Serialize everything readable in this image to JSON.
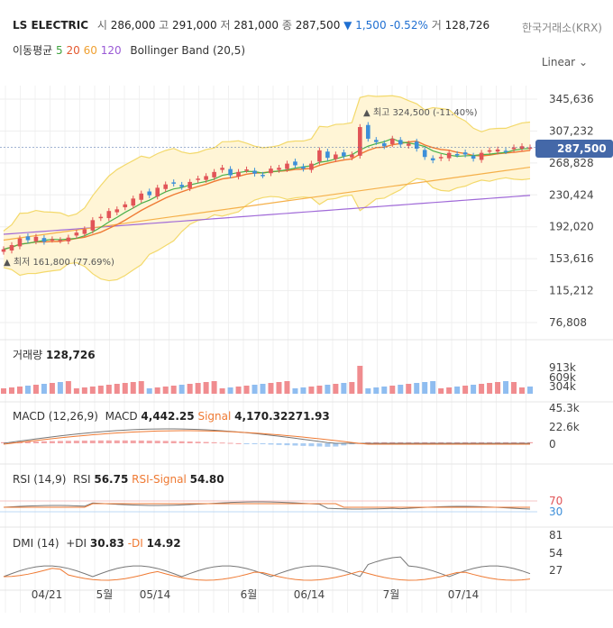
{
  "header": {
    "name": "LS ELECTRIC",
    "open_label": "시",
    "open": "286,000",
    "high_label": "고",
    "high": "291,000",
    "low_label": "저",
    "low": "281,000",
    "close_label": "종",
    "close": "287,500",
    "change_arrow": "▼",
    "change": "1,500",
    "change_pct": "-0.52%",
    "volume_label": "거",
    "volume": "128,726",
    "exchange": "한국거래소(KRX)"
  },
  "legend": {
    "ma_title": "이동평균",
    "ma5": "5",
    "ma20": "20",
    "ma60": "60",
    "ma120": "120",
    "bb": "Bollinger Band (20,5)"
  },
  "scale_mode": "Linear",
  "current_price_label": "287,500",
  "panels": {
    "volume": {
      "title": "거래량",
      "value": "128,726"
    },
    "macd": {
      "title": "MACD (12,26,9)",
      "macd_label": "MACD",
      "macd_value": "4,442.25",
      "signal_label": "Signal",
      "signal_value": "4,170.32271.93"
    },
    "rsi": {
      "title": "RSI (14,9)",
      "rsi_label": "RSI",
      "rsi_value": "56.75",
      "signal_label": "RSI-Signal",
      "signal_value": "54.80"
    },
    "dmi": {
      "title": "DMI (14)",
      "pdi_label": "+DI",
      "pdi_value": "30.83",
      "mdi_label": "-DI",
      "mdi_value": "14.92"
    }
  },
  "colors": {
    "up": "#e15457",
    "down": "#3d8fd9",
    "ma5": "#49b04a",
    "ma20": "#ef7a33",
    "ma60": "#f5b04a",
    "ma120": "#a06ad8",
    "bb_fill": "#fff5d6",
    "bb_line": "#f3d96b"
  },
  "chart_data": {
    "type": "candlestick",
    "price_axis_ticks": [
      "345,636",
      "307,232",
      "268,828",
      "230,424",
      "192,020",
      "153,616",
      "115,212",
      "76,808"
    ],
    "price_axis_values": [
      345636,
      307232,
      268828,
      230424,
      192020,
      153616,
      115212,
      76808
    ],
    "x_tick_labels": [
      "04/21",
      "5월",
      "05/14",
      "6월",
      "06/14",
      "7월",
      "07/14"
    ],
    "max_annotation": "최고 324,500 (-11.40%)",
    "min_annotation": "최저 161,800 (77.69%)",
    "volume_axis": [
      "913k",
      "609k",
      "304k"
    ],
    "macd_axis": [
      "45.3k",
      "22.6k",
      "0"
    ],
    "rsi_axis": [
      "70",
      "30"
    ],
    "dmi_axis": [
      "81",
      "54",
      "27"
    ],
    "close_series": [
      165000,
      170000,
      178000,
      176000,
      180000,
      174000,
      177000,
      176000,
      179000,
      185000,
      189000,
      200000,
      204000,
      211000,
      213000,
      219000,
      226000,
      232000,
      230000,
      239000,
      243000,
      244000,
      240000,
      246000,
      250000,
      253000,
      258000,
      263000,
      254000,
      258000,
      261000,
      256000,
      254000,
      262000,
      263000,
      268000,
      266000,
      262000,
      268000,
      284000,
      275000,
      279000,
      277000,
      279000,
      312000,
      298000,
      294000,
      289000,
      298000,
      291000,
      292000,
      286000,
      276000,
      272000,
      276000,
      281000,
      279000,
      279000,
      274000,
      281000,
      284000,
      285000,
      283000,
      287500,
      289000,
      287500
    ]
  }
}
